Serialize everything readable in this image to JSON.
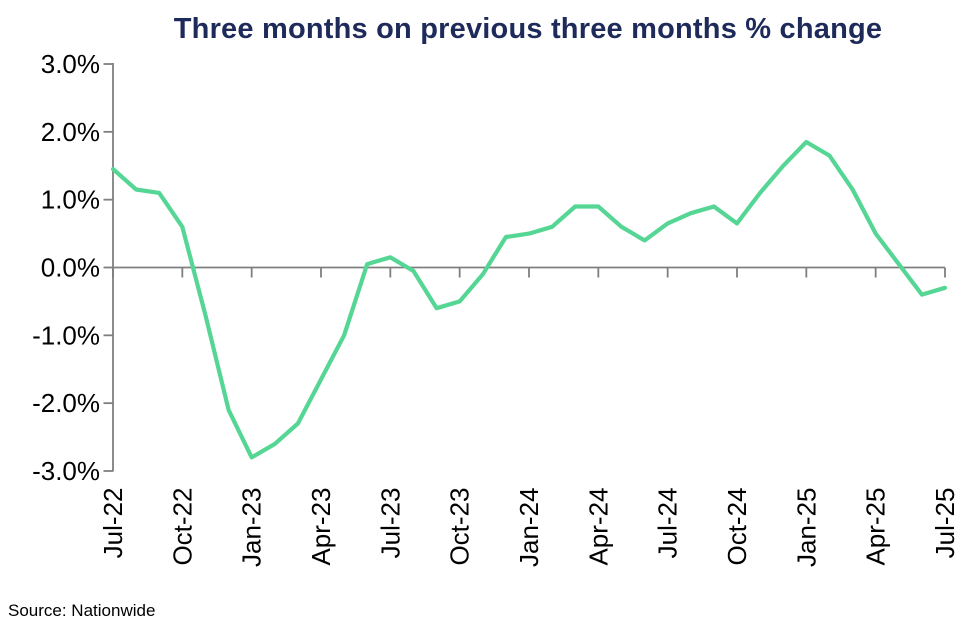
{
  "title": "Three months on previous three months % change",
  "source": "Source: Nationwide",
  "colors": {
    "line": "#55d694",
    "title": "#1e2a5a",
    "axis": "#7f7f7f",
    "tick_text": "#000000"
  },
  "chart_data": {
    "type": "line",
    "title": "Three months on previous three months % change",
    "xlabel": "",
    "ylabel": "",
    "ylim": [
      -3.0,
      3.0
    ],
    "grid": "zero-line-only",
    "legend_position": "none",
    "series_name": "3 months on previous 3 months % change",
    "x": [
      "Jul-22",
      "Aug-22",
      "Sep-22",
      "Oct-22",
      "Nov-22",
      "Dec-22",
      "Jan-23",
      "Feb-23",
      "Mar-23",
      "Apr-23",
      "May-23",
      "Jun-23",
      "Jul-23",
      "Aug-23",
      "Sep-23",
      "Oct-23",
      "Nov-23",
      "Dec-23",
      "Jan-24",
      "Feb-24",
      "Mar-24",
      "Apr-24",
      "May-24",
      "Jun-24",
      "Jul-24",
      "Aug-24",
      "Sep-24",
      "Oct-24",
      "Nov-24",
      "Dec-24",
      "Jan-25",
      "Feb-25",
      "Mar-25",
      "Apr-25",
      "May-25",
      "Jun-25",
      "Jul-25"
    ],
    "values": [
      1.45,
      1.15,
      1.1,
      0.6,
      -0.7,
      -2.1,
      -2.8,
      -2.6,
      -2.3,
      -1.65,
      -1.0,
      0.05,
      0.15,
      -0.05,
      -0.6,
      -0.5,
      -0.1,
      0.45,
      0.5,
      0.6,
      0.9,
      0.9,
      0.6,
      0.4,
      0.65,
      0.8,
      0.9,
      0.65,
      1.1,
      1.5,
      1.85,
      1.65,
      1.15,
      0.5,
      0.05,
      -0.4,
      -0.3
    ],
    "x_tick_labels": [
      "Jul-22",
      "Oct-22",
      "Jan-23",
      "Apr-23",
      "Jul-23",
      "Oct-23",
      "Jan-24",
      "Apr-24",
      "Jul-24",
      "Oct-24",
      "Jan-25",
      "Apr-25",
      "Jul-25"
    ],
    "x_tick_every": 3,
    "y_ticks": [
      3.0,
      2.0,
      1.0,
      0.0,
      -1.0,
      -2.0,
      -3.0
    ],
    "y_tick_labels": [
      "3.0%",
      "2.0%",
      "1.0%",
      "0.0%",
      "-1.0%",
      "-2.0%",
      "-3.0%"
    ],
    "source": "Source: Nationwide"
  }
}
